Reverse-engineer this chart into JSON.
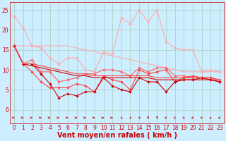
{
  "x": [
    0,
    1,
    2,
    3,
    4,
    5,
    6,
    7,
    8,
    9,
    10,
    11,
    12,
    13,
    14,
    15,
    16,
    17,
    18,
    19,
    20,
    21,
    22,
    23
  ],
  "series": [
    {
      "color": "#ffaaaa",
      "linewidth": 0.8,
      "marker": "D",
      "markersize": 2.0,
      "y": [
        23.5,
        20.5,
        16.0,
        15.5,
        13.0,
        11.5,
        13.0,
        13.0,
        10.0,
        9.5,
        14.5,
        14.0,
        23.0,
        21.5,
        25.0,
        22.0,
        25.0,
        17.0,
        15.5,
        15.0,
        15.0,
        9.5,
        10.0,
        9.5
      ]
    },
    {
      "color": "#ffaaaa",
      "linewidth": 0.8,
      "marker": "",
      "markersize": 0,
      "y": [
        16.0,
        16.0,
        16.0,
        16.0,
        16.0,
        16.0,
        16.0,
        15.5,
        15.0,
        14.5,
        14.0,
        13.5,
        13.0,
        12.5,
        12.0,
        11.5,
        11.0,
        10.5,
        10.0,
        9.5,
        9.5,
        9.5,
        9.5,
        9.5
      ]
    },
    {
      "color": "#ff6666",
      "linewidth": 0.8,
      "marker": "D",
      "markersize": 2.0,
      "y": [
        16.0,
        11.5,
        12.5,
        9.5,
        9.5,
        7.0,
        7.5,
        8.0,
        9.0,
        9.0,
        10.0,
        10.0,
        9.5,
        8.5,
        10.5,
        9.5,
        10.5,
        10.5,
        8.5,
        8.5,
        8.0,
        8.0,
        8.0,
        7.5
      ]
    },
    {
      "color": "#ff4444",
      "linewidth": 0.8,
      "marker": "D",
      "markersize": 2.0,
      "y": [
        16.0,
        11.5,
        9.5,
        7.0,
        5.5,
        5.5,
        5.5,
        6.5,
        6.0,
        4.5,
        8.5,
        7.5,
        7.0,
        5.0,
        10.0,
        9.0,
        9.5,
        10.0,
        7.0,
        8.0,
        8.5,
        8.0,
        8.0,
        7.0
      ]
    },
    {
      "color": "#cc0000",
      "linewidth": 0.8,
      "marker": "D",
      "markersize": 2.0,
      "y": [
        16.0,
        11.5,
        11.5,
        9.0,
        6.5,
        3.0,
        4.0,
        3.5,
        4.5,
        4.5,
        8.0,
        6.0,
        5.0,
        4.5,
        8.0,
        7.0,
        7.0,
        4.5,
        7.0,
        7.5,
        7.5,
        8.0,
        7.5,
        7.0
      ]
    },
    {
      "color": "#cc0000",
      "linewidth": 0.8,
      "marker": "",
      "markersize": 0,
      "y": [
        16.0,
        11.5,
        11.0,
        10.5,
        10.0,
        9.5,
        9.0,
        8.5,
        8.5,
        8.0,
        8.0,
        8.0,
        8.0,
        8.0,
        8.0,
        8.0,
        7.5,
        7.5,
        7.5,
        7.5,
        7.5,
        7.5,
        7.5,
        7.0
      ]
    },
    {
      "color": "#ff4444",
      "linewidth": 0.8,
      "marker": "",
      "markersize": 0,
      "y": [
        16.0,
        11.5,
        11.5,
        11.0,
        10.5,
        10.0,
        9.5,
        9.0,
        9.0,
        8.5,
        8.5,
        8.5,
        8.5,
        8.5,
        8.5,
        8.5,
        8.0,
        8.0,
        8.0,
        8.0,
        8.0,
        8.0,
        8.0,
        7.5
      ]
    }
  ],
  "arrow_directions": [
    0,
    0,
    0,
    0,
    0,
    0,
    0,
    0,
    0,
    0,
    0,
    0,
    45,
    45,
    45,
    90,
    90,
    135,
    135,
    135,
    135,
    135,
    135,
    135
  ],
  "xlabel": "Vent moyen/en rafales ( km/h )",
  "xlabel_color": "#cc0000",
  "xlabel_fontsize": 7,
  "background_color": "#cceeff",
  "grid_color": "#aaccbb",
  "ylim": [
    -3.5,
    27
  ],
  "yticks": [
    0,
    5,
    10,
    15,
    20,
    25
  ],
  "xticks": [
    0,
    1,
    2,
    3,
    4,
    5,
    6,
    7,
    8,
    9,
    10,
    11,
    12,
    13,
    14,
    15,
    16,
    17,
    18,
    19,
    20,
    21,
    22,
    23
  ],
  "tick_fontsize": 5.5,
  "tick_color": "#cc0000",
  "spine_color": "#cc0000"
}
